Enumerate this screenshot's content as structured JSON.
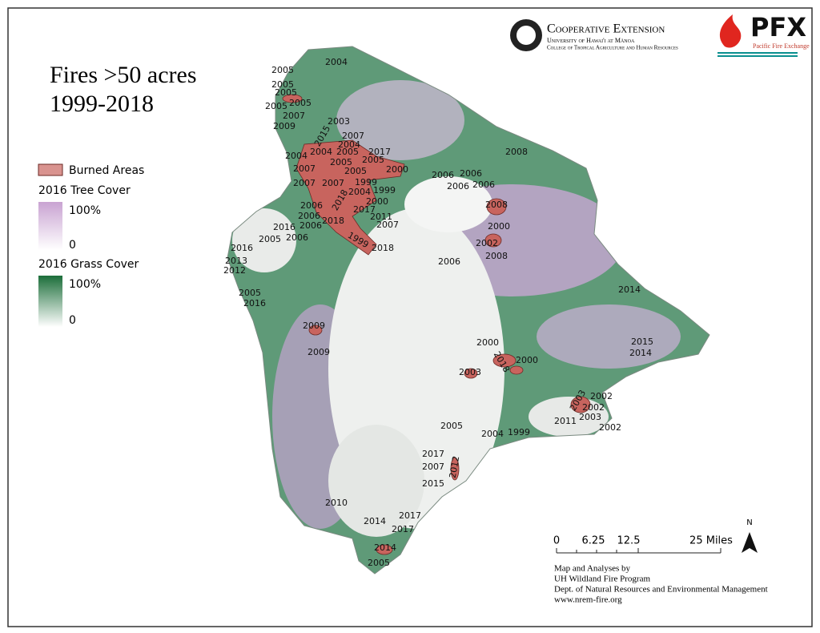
{
  "title": [
    "Fires >50 acres",
    "1999-2018"
  ],
  "legend": {
    "burned": "Burned Areas",
    "tree_title": "2016 Tree Cover",
    "tree_max": "100%",
    "tree_min": "0",
    "grass_title": "2016 Grass Cover",
    "grass_max": "100%",
    "grass_min": "0"
  },
  "logo": {
    "extension": "Cooperative Extension",
    "university": "University of Hawai'i at Mānoa",
    "college": "College of Tropical Agriculture and Human Resources",
    "pfx": "PFX",
    "pfx_sub": "Pacific Fire Exchange"
  },
  "scale_bar": {
    "ticks": [
      "0",
      "6.25",
      "12.5",
      "25 Miles"
    ]
  },
  "north": "N",
  "credits": [
    "Map and Analyses by",
    "UH Wildland Fire Program",
    "Dept. of Natural Resources and Environmental Management",
    "www.nrem-fire.org"
  ],
  "fire_labels": [
    "2004",
    "2005",
    "2005",
    "2005",
    "2005",
    "2005",
    "2007",
    "2009",
    "2003",
    "2015",
    "2007",
    "2004",
    "2005",
    "2017",
    "2004",
    "2004",
    "2005",
    "2005",
    "2000",
    "2007",
    "2005",
    "1999",
    "2007",
    "2007",
    "2004",
    "1999",
    "2018",
    "2000",
    "2006",
    "2017",
    "2006",
    "2011",
    "2006",
    "2018",
    "2007",
    "2016",
    "2005",
    "2006",
    "1999",
    "2018",
    "2016",
    "2013",
    "2012",
    "2006",
    "2006",
    "2006",
    "2006",
    "2008",
    "2008",
    "2000",
    "2002",
    "2008",
    "2006",
    "2014",
    "2005",
    "2016",
    "2009",
    "2009",
    "2000",
    "2018",
    "2000",
    "2003",
    "2015",
    "2014",
    "2003",
    "2002",
    "2002",
    "2003",
    "2011",
    "2002",
    "2005",
    "2004",
    "1999",
    "2017",
    "2007",
    "2012",
    "2015",
    "2010",
    "2017",
    "2014",
    "2017",
    "2014",
    "2005"
  ]
}
